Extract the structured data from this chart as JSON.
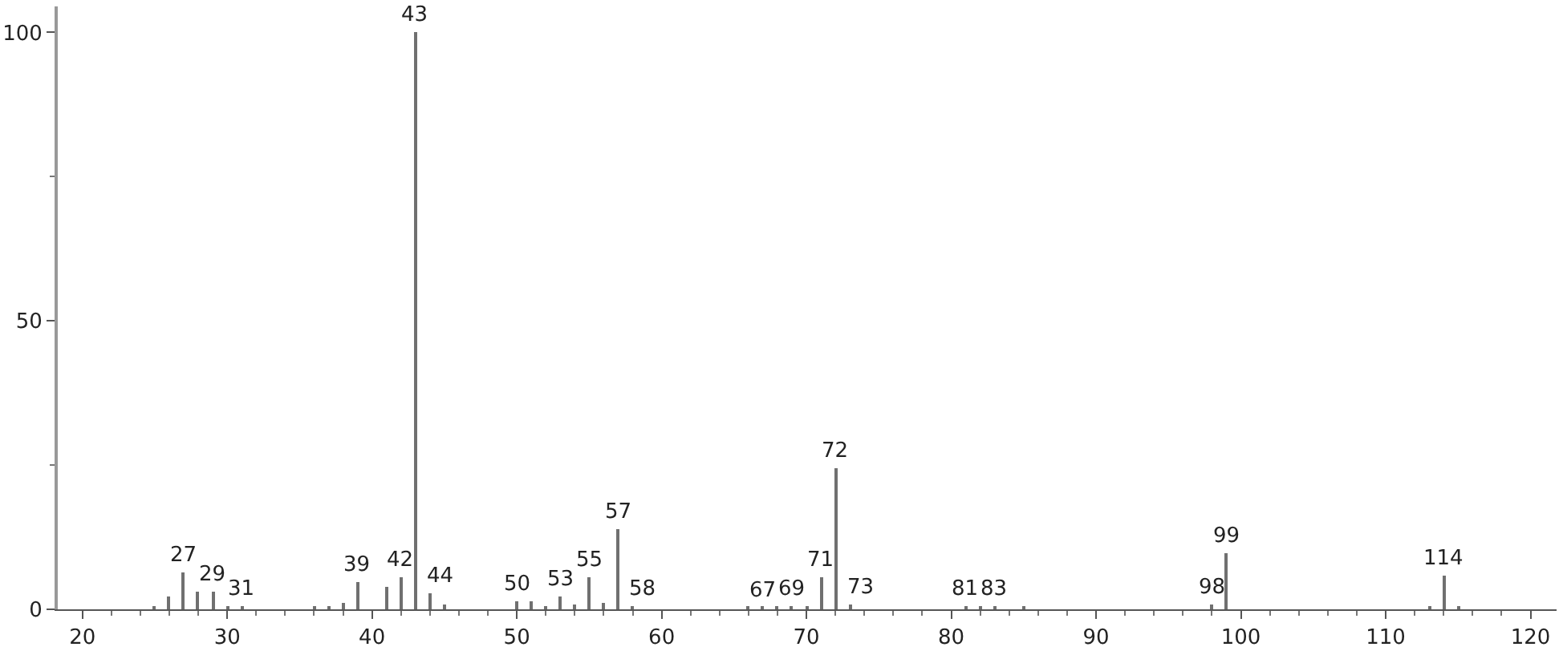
{
  "chart_data": {
    "type": "bar",
    "color": "#707070",
    "x": [
      25,
      26,
      27,
      28,
      29,
      30,
      31,
      36,
      37,
      38,
      39,
      41,
      42,
      43,
      44,
      45,
      50,
      51,
      52,
      53,
      54,
      55,
      56,
      57,
      58,
      66,
      67,
      68,
      69,
      70,
      71,
      72,
      73,
      81,
      82,
      83,
      85,
      98,
      99,
      113,
      114,
      115
    ],
    "values": [
      0.3,
      2.2,
      6.3,
      3,
      3,
      0.4,
      0.5,
      0.5,
      0.5,
      1.1,
      4.7,
      3.8,
      5.5,
      100,
      2.7,
      0.8,
      1.4,
      1.4,
      0.5,
      2.2,
      0.8,
      5.5,
      1.1,
      14,
      0.5,
      0.4,
      0.4,
      0.5,
      0.5,
      0.5,
      5.5,
      24.5,
      0.8,
      0.5,
      0.5,
      0.5,
      0.3,
      0.8,
      9.6,
      0.5,
      5.8,
      0.5
    ],
    "xlim": [
      18.3,
      121.8
    ],
    "xticks": [
      20,
      30,
      40,
      50,
      60,
      70,
      80,
      90,
      100,
      110,
      120
    ],
    "ylim": [
      0,
      104.5
    ],
    "yticks": [
      0,
      50,
      100
    ],
    "annotations": [
      {
        "text": "27",
        "x": 27,
        "y": 6.3
      },
      {
        "text": "29",
        "x": 29,
        "y": 3
      },
      {
        "text": "31",
        "x": 31,
        "y": 0.5
      },
      {
        "text": "39",
        "x": 39,
        "y": 4.7
      },
      {
        "text": "42",
        "x": 42,
        "y": 5.5
      },
      {
        "text": "43",
        "x": 43,
        "y": 100
      },
      {
        "text": "44",
        "x": 44,
        "y": 2.7
      },
      {
        "text": "50",
        "x": 50,
        "y": 1.4
      },
      {
        "text": "53",
        "x": 53,
        "y": 2.2
      },
      {
        "text": "55",
        "x": 55,
        "y": 5.5
      },
      {
        "text": "57",
        "x": 57,
        "y": 14
      },
      {
        "text": "58",
        "x": 58,
        "y": 0.5
      },
      {
        "text": "67",
        "x": 67,
        "y": 0.4
      },
      {
        "text": "69",
        "x": 69,
        "y": 0.5
      },
      {
        "text": "71",
        "x": 71,
        "y": 5.5
      },
      {
        "text": "72",
        "x": 72,
        "y": 24.5
      },
      {
        "text": "73",
        "x": 73,
        "y": 0.8
      },
      {
        "text": "81",
        "x": 81,
        "y": 0.5
      },
      {
        "text": "83",
        "x": 83,
        "y": 0.5
      },
      {
        "text": "98",
        "x": 98,
        "y": 0.8
      },
      {
        "text": "99",
        "x": 99,
        "y": 9.6
      },
      {
        "text": "114",
        "x": 114,
        "y": 5.8
      }
    ]
  }
}
